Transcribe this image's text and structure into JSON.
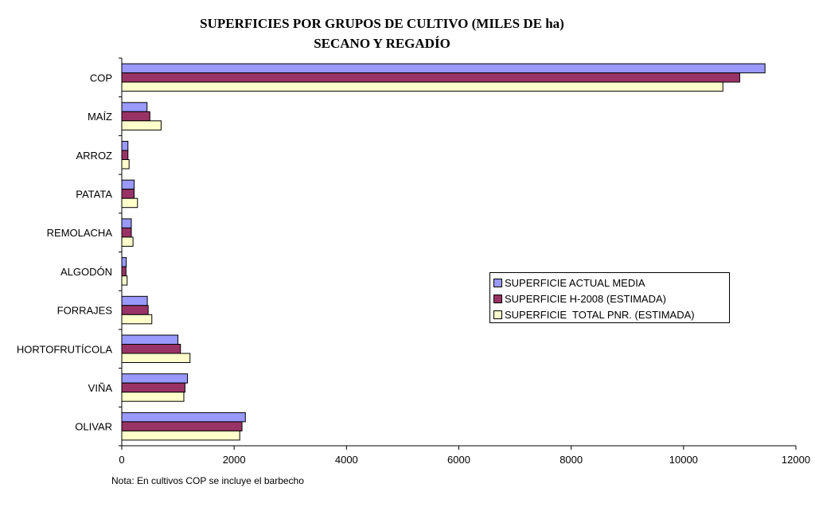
{
  "chart_data": {
    "type": "bar",
    "orientation": "horizontal",
    "title": "SUPERFICIES POR GRUPOS DE CULTIVO (MILES DE ha)",
    "subtitle": "SECANO Y REGADÍO",
    "categories": [
      "COP",
      "MAÍZ",
      "ARROZ",
      "PATATA",
      "REMOLACHA",
      "ALGODÓN",
      "FORRAJES",
      "HORTOFRUTÍCOLA",
      "VIÑA",
      "OLIVAR"
    ],
    "series": [
      {
        "name": "SUPERFICIE ACTUAL MEDIA",
        "color": "#9999ff",
        "values": [
          11450,
          450,
          110,
          220,
          170,
          80,
          455,
          1000,
          1170,
          2200
        ]
      },
      {
        "name": "SUPERFICIE H-2008 (ESTIMADA)",
        "color": "#993366",
        "values": [
          11000,
          500,
          110,
          220,
          170,
          75,
          470,
          1045,
          1125,
          2140
        ]
      },
      {
        "name": "SUPERFICIE  TOTAL PNR. (ESTIMADA)",
        "color": "#ffffcc",
        "values": [
          10700,
          700,
          130,
          280,
          200,
          95,
          535,
          1215,
          1105,
          2100
        ]
      }
    ],
    "xlim": [
      0,
      12000
    ],
    "xticks": [
      "0",
      "2000",
      "4000",
      "6000",
      "8000",
      "10000",
      "12000"
    ],
    "xlabel": "",
    "ylabel": "",
    "grid": false,
    "legend_position": "center-right"
  },
  "note": "Nota: En cultivos COP se incluye el barbecho"
}
